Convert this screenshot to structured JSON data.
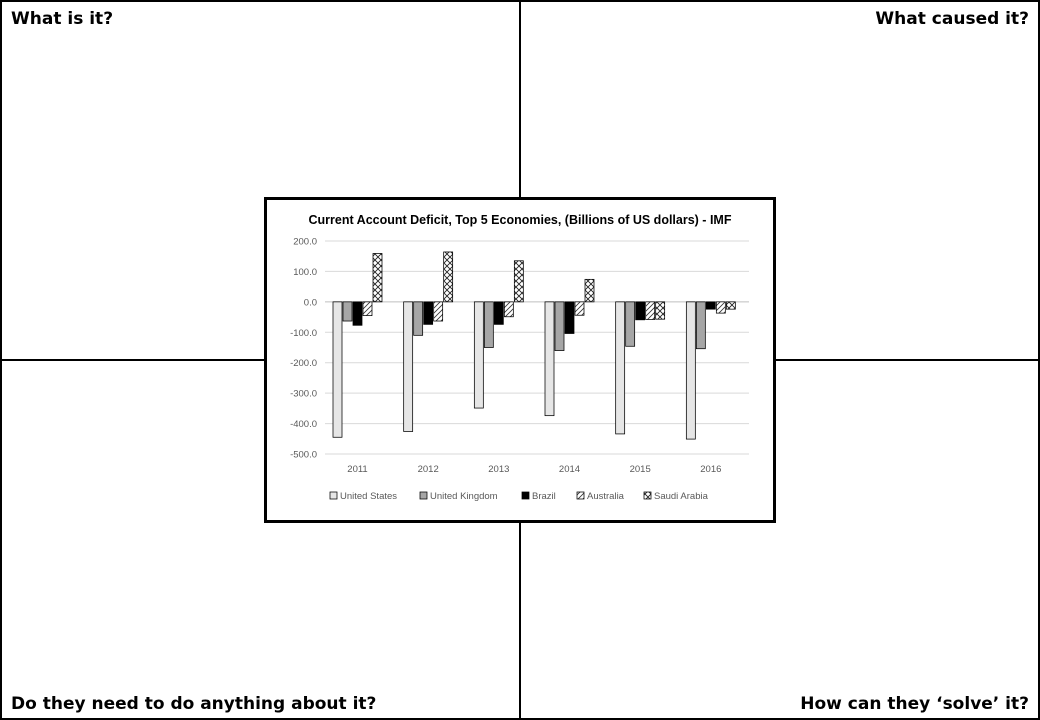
{
  "quadrants": {
    "top_left": "What is it?",
    "top_right": "What caused it?",
    "bottom_left": "Do they need to do anything about it?",
    "bottom_right": "How can they ‘solve’ it?"
  },
  "chart_data": {
    "type": "bar",
    "title": "Current Account Deficit, Top 5 Economies, (Billions of US dollars) - IMF",
    "categories": [
      "2011",
      "2012",
      "2013",
      "2014",
      "2015",
      "2016"
    ],
    "ylim": [
      -500,
      200
    ],
    "yticks": [
      "200.0",
      "100.0",
      "0.0",
      "-100.0",
      "-200.0",
      "-300.0",
      "-400.0",
      "-500.0"
    ],
    "grid": true,
    "legend_position": "bottom",
    "series": [
      {
        "name": "United States",
        "pattern": "light-gray",
        "values": [
          -445,
          -426,
          -349,
          -374,
          -434,
          -451
        ]
      },
      {
        "name": "United Kingdom",
        "pattern": "dark-gray",
        "values": [
          -63,
          -110,
          -150,
          -160,
          -146,
          -154
        ]
      },
      {
        "name": "Brazil",
        "pattern": "black",
        "values": [
          -77,
          -74,
          -74,
          -104,
          -59,
          -24
        ]
      },
      {
        "name": "Australia",
        "pattern": "diagonal-hatch",
        "values": [
          -45,
          -63,
          -49,
          -44,
          -58,
          -37
        ]
      },
      {
        "name": "Saudi Arabia",
        "pattern": "crosshatch",
        "values": [
          159,
          164,
          135,
          74,
          -57,
          -24
        ]
      }
    ]
  }
}
